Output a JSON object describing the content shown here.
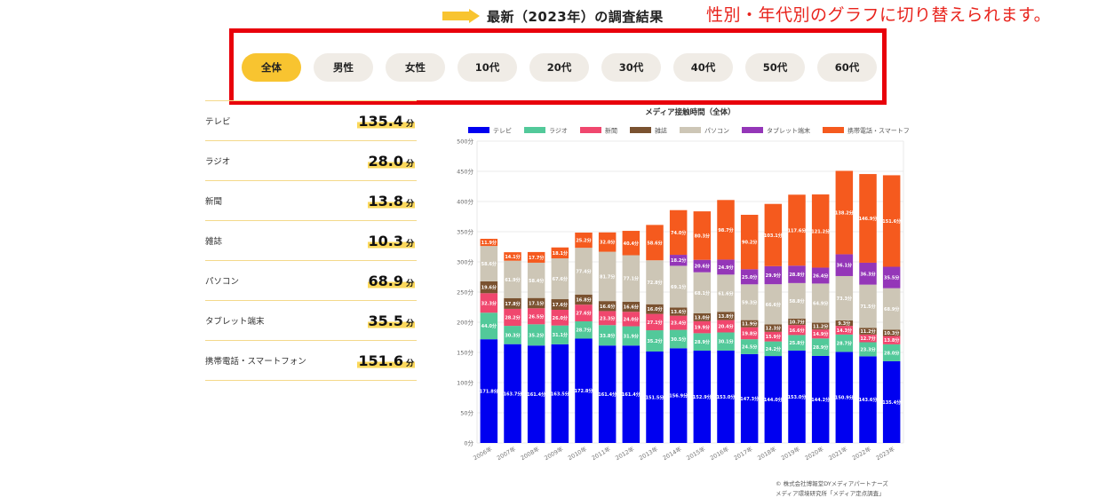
{
  "header": {
    "title": "最新（2023年）の調査結果",
    "annotation": "性別・年代別のグラフに切り替えられます。",
    "arrow_icon": "arrow-right-icon",
    "accent_color": "#f8c430",
    "highlight_frame_color": "#e8000b"
  },
  "filters": [
    {
      "label": "全体",
      "active": true
    },
    {
      "label": "男性",
      "active": false
    },
    {
      "label": "女性",
      "active": false
    },
    {
      "label": "10代",
      "active": false
    },
    {
      "label": "20代",
      "active": false
    },
    {
      "label": "30代",
      "active": false
    },
    {
      "label": "40代",
      "active": false
    },
    {
      "label": "50代",
      "active": false
    },
    {
      "label": "60代",
      "active": false
    }
  ],
  "stats": [
    {
      "label": "テレビ",
      "value": "135.4",
      "unit": "分"
    },
    {
      "label": "ラジオ",
      "value": "28.0",
      "unit": "分"
    },
    {
      "label": "新聞",
      "value": "13.8",
      "unit": "分"
    },
    {
      "label": "雑誌",
      "value": "10.3",
      "unit": "分"
    },
    {
      "label": "パソコン",
      "value": "68.9",
      "unit": "分"
    },
    {
      "label": "タブレット端末",
      "value": "35.5",
      "unit": "分"
    },
    {
      "label": "携帯電話・スマートフォン",
      "value": "151.6",
      "unit": "分"
    }
  ],
  "chart_data": {
    "type": "bar",
    "stacked": true,
    "title": "メディア接触時間（全体）",
    "xlabel": "",
    "ylabel": "",
    "ylim": [
      0,
      500
    ],
    "y_ticks": [
      "0分",
      "50分",
      "100分",
      "150分",
      "200分",
      "250分",
      "300分",
      "350分",
      "400分",
      "450分",
      "500分"
    ],
    "categories": [
      "2006年",
      "2007年",
      "2008年",
      "2009年",
      "2010年",
      "2011年",
      "2012年",
      "2013年",
      "2014年",
      "2015年",
      "2016年",
      "2017年",
      "2018年",
      "2019年",
      "2020年",
      "2021年",
      "2022年",
      "2023年"
    ],
    "legend_position": "top",
    "series": [
      {
        "name": "テレビ",
        "color": "#0000f0",
        "labels_shown": true,
        "values": [
          171.8,
          163.7,
          161.4,
          163.5,
          172.8,
          161.4,
          161.4,
          151.5,
          156.9,
          152.9,
          153.0,
          147.3,
          144.0,
          153.0,
          144.2,
          150.9,
          143.6,
          135.4
        ]
      },
      {
        "name": "ラジオ",
        "color": "#52c99a",
        "labels_shown": true,
        "values": [
          44.0,
          30.3,
          35.2,
          31.1,
          28.7,
          33.8,
          31.9,
          35.2,
          30.5,
          28.9,
          30.1,
          24.5,
          24.2,
          25.8,
          28.9,
          28.7,
          23.3,
          28.0
        ]
      },
      {
        "name": "新聞",
        "color": "#f0476e",
        "labels_shown": true,
        "values": [
          32.3,
          28.2,
          26.5,
          26.0,
          27.6,
          23.3,
          24.0,
          27.1,
          23.4,
          19.9,
          20.4,
          19.8,
          15.9,
          16.6,
          14.9,
          14.3,
          12.7,
          13.8
        ]
      },
      {
        "name": "雑誌",
        "color": "#7a5230",
        "labels_shown": true,
        "values": [
          19.6,
          17.8,
          17.1,
          17.6,
          16.8,
          16.6,
          16.6,
          16.0,
          13.6,
          13.0,
          13.8,
          11.9,
          12.3,
          10.7,
          11.2,
          9.3,
          11.2,
          10.3
        ]
      },
      {
        "name": "パソコン",
        "color": "#cdc6b6",
        "labels_shown": true,
        "values": [
          58.6,
          61.9,
          58.4,
          67.6,
          77.4,
          81.7,
          77.1,
          72.8,
          69.1,
          68.1,
          61.6,
          59.3,
          66.6,
          58.8,
          64.9,
          73.3,
          71.5,
          68.9
        ]
      },
      {
        "name": "タブレット端末",
        "color": "#9436b8",
        "labels_shown": true,
        "values": [
          0,
          0,
          0,
          0,
          0,
          0,
          0,
          0,
          18.2,
          20.6,
          24.9,
          25.0,
          29.9,
          28.8,
          26.4,
          36.1,
          36.3,
          35.5
        ]
      },
      {
        "name": "携帯電話・スマートフォン",
        "color": "#f55a1e",
        "labels_shown": true,
        "values": [
          11.9,
          14.1,
          17.7,
          18.1,
          25.2,
          32.0,
          40.4,
          58.6,
          74.0,
          80.3,
          98.7,
          90.2,
          103.1,
          117.6,
          121.2,
          138.2,
          146.9,
          151.6
        ]
      }
    ]
  },
  "footer": {
    "credit1": "© 株式会社博報堂DYメディアパートナーズ",
    "credit2": "メディア環境研究所「メディア定点調査」"
  }
}
